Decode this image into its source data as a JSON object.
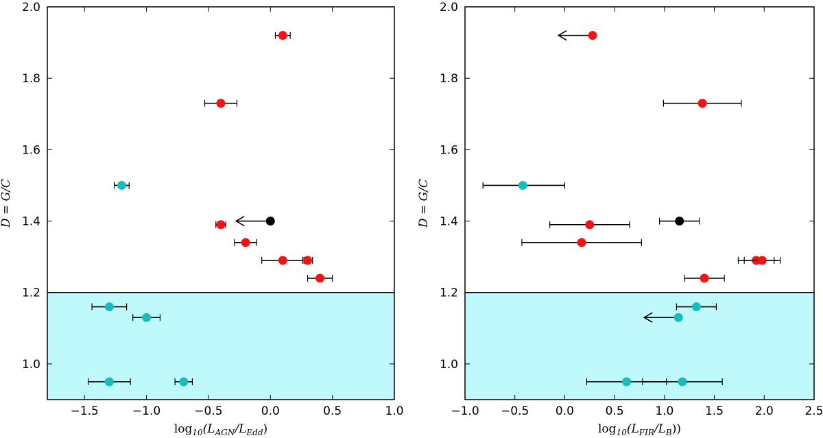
{
  "chart_data": [
    {
      "type": "scatter",
      "xlabel": {
        "prefix": "log",
        "sub": "10",
        "open": "(L",
        "num_sub": "AGN",
        "mid": "/L",
        "den_sub": "Edd",
        "close": ")"
      },
      "ylabel": "D = G/C",
      "xlim": [
        -1.8,
        1.0
      ],
      "ylim": [
        0.9,
        2.0
      ],
      "xticks": [
        -1.5,
        -1.0,
        -0.5,
        0.0,
        0.5,
        1.0
      ],
      "xtick_labels": [
        "−1.5",
        "−1.0",
        "−0.5",
        "0.0",
        "0.5",
        "1.0"
      ],
      "yticks": [
        1.0,
        1.2,
        1.4,
        1.6,
        1.8,
        2.0
      ],
      "ytick_labels": [
        "1.0",
        "1.2",
        "1.4",
        "1.6",
        "1.8",
        "2.0"
      ],
      "threshold": {
        "y": 1.2,
        "color": "#bff9fb"
      },
      "points": [
        {
          "x": 0.1,
          "y": 1.92,
          "xerr": [
            0.06,
            0.06
          ],
          "color": "red"
        },
        {
          "x": -0.4,
          "y": 1.73,
          "xerr": [
            0.13,
            0.13
          ],
          "color": "red"
        },
        {
          "x": -1.2,
          "y": 1.5,
          "xerr": [
            0.06,
            0.06
          ],
          "color": "cyan"
        },
        {
          "x": 0.0,
          "y": 1.4,
          "color": "black",
          "upper_limit": true
        },
        {
          "x": -0.4,
          "y": 1.39,
          "xerr": [
            0.04,
            0.04
          ],
          "color": "red"
        },
        {
          "x": -0.2,
          "y": 1.34,
          "xerr": [
            0.09,
            0.09
          ],
          "color": "red"
        },
        {
          "x": 0.1,
          "y": 1.29,
          "xerr": [
            0.17,
            0.17
          ],
          "color": "red"
        },
        {
          "x": 0.3,
          "y": 1.29,
          "xerr": [
            0.04,
            0.04
          ],
          "color": "red"
        },
        {
          "x": 0.4,
          "y": 1.24,
          "xerr": [
            0.1,
            0.1
          ],
          "color": "red"
        },
        {
          "x": -1.3,
          "y": 1.16,
          "xerr": [
            0.14,
            0.14
          ],
          "color": "cyan"
        },
        {
          "x": -1.0,
          "y": 1.13,
          "xerr": [
            0.11,
            0.11
          ],
          "color": "cyan"
        },
        {
          "x": -1.3,
          "y": 0.95,
          "xerr": [
            0.17,
            0.17
          ],
          "color": "cyan"
        },
        {
          "x": -0.7,
          "y": 0.95,
          "xerr": [
            0.07,
            0.07
          ],
          "color": "cyan"
        }
      ]
    },
    {
      "type": "scatter",
      "xlabel": {
        "prefix": "log",
        "sub": "10",
        "open": "(L",
        "num_sub": "FIR",
        "mid": "/L",
        "den_sub": "B",
        "close": "))"
      },
      "ylabel": "D = G/C",
      "xlim": [
        -1.0,
        2.5
      ],
      "ylim": [
        0.9,
        2.0
      ],
      "xticks": [
        -1.0,
        -0.5,
        0.0,
        0.5,
        1.0,
        1.5,
        2.0,
        2.5
      ],
      "xtick_labels": [
        "−1.0",
        "−0.5",
        "0.0",
        "0.5",
        "1.0",
        "1.5",
        "2.0",
        "2.5"
      ],
      "yticks": [
        1.0,
        1.2,
        1.4,
        1.6,
        1.8,
        2.0
      ],
      "ytick_labels": [
        "1.0",
        "1.2",
        "1.4",
        "1.6",
        "1.8",
        "2.0"
      ],
      "threshold": {
        "y": 1.2,
        "color": "#bff9fb"
      },
      "points": [
        {
          "x": 0.28,
          "y": 1.92,
          "color": "red",
          "upper_limit": true
        },
        {
          "x": 1.38,
          "y": 1.73,
          "xerr": [
            0.39,
            0.39
          ],
          "color": "red"
        },
        {
          "x": -0.42,
          "y": 1.5,
          "xerr": [
            0.4,
            0.42
          ],
          "color": "cyan"
        },
        {
          "x": 1.15,
          "y": 1.4,
          "xerr": [
            0.2,
            0.2
          ],
          "color": "black"
        },
        {
          "x": 0.25,
          "y": 1.39,
          "xerr": [
            0.4,
            0.4
          ],
          "color": "red"
        },
        {
          "x": 0.17,
          "y": 1.34,
          "xerr": [
            0.6,
            0.6
          ],
          "color": "red"
        },
        {
          "x": 1.92,
          "y": 1.29,
          "xerr": [
            0.18,
            0.18
          ],
          "color": "red"
        },
        {
          "x": 1.98,
          "y": 1.29,
          "xerr": [
            0.18,
            0.18
          ],
          "color": "red"
        },
        {
          "x": 1.4,
          "y": 1.24,
          "xerr": [
            0.2,
            0.2
          ],
          "color": "red"
        },
        {
          "x": 1.32,
          "y": 1.16,
          "xerr": [
            0.2,
            0.2
          ],
          "color": "cyan"
        },
        {
          "x": 1.14,
          "y": 1.13,
          "color": "cyan",
          "upper_limit": true
        },
        {
          "x": 0.62,
          "y": 0.95,
          "xerr": [
            0.4,
            0.4
          ],
          "color": "cyan"
        },
        {
          "x": 1.18,
          "y": 0.95,
          "xerr": [
            0.4,
            0.4
          ],
          "color": "cyan"
        }
      ]
    }
  ],
  "colors": {
    "red": "#f01414",
    "cyan": "#18bcbe",
    "black": "#000000",
    "band": "#bff9fb",
    "frame": "#000000"
  }
}
